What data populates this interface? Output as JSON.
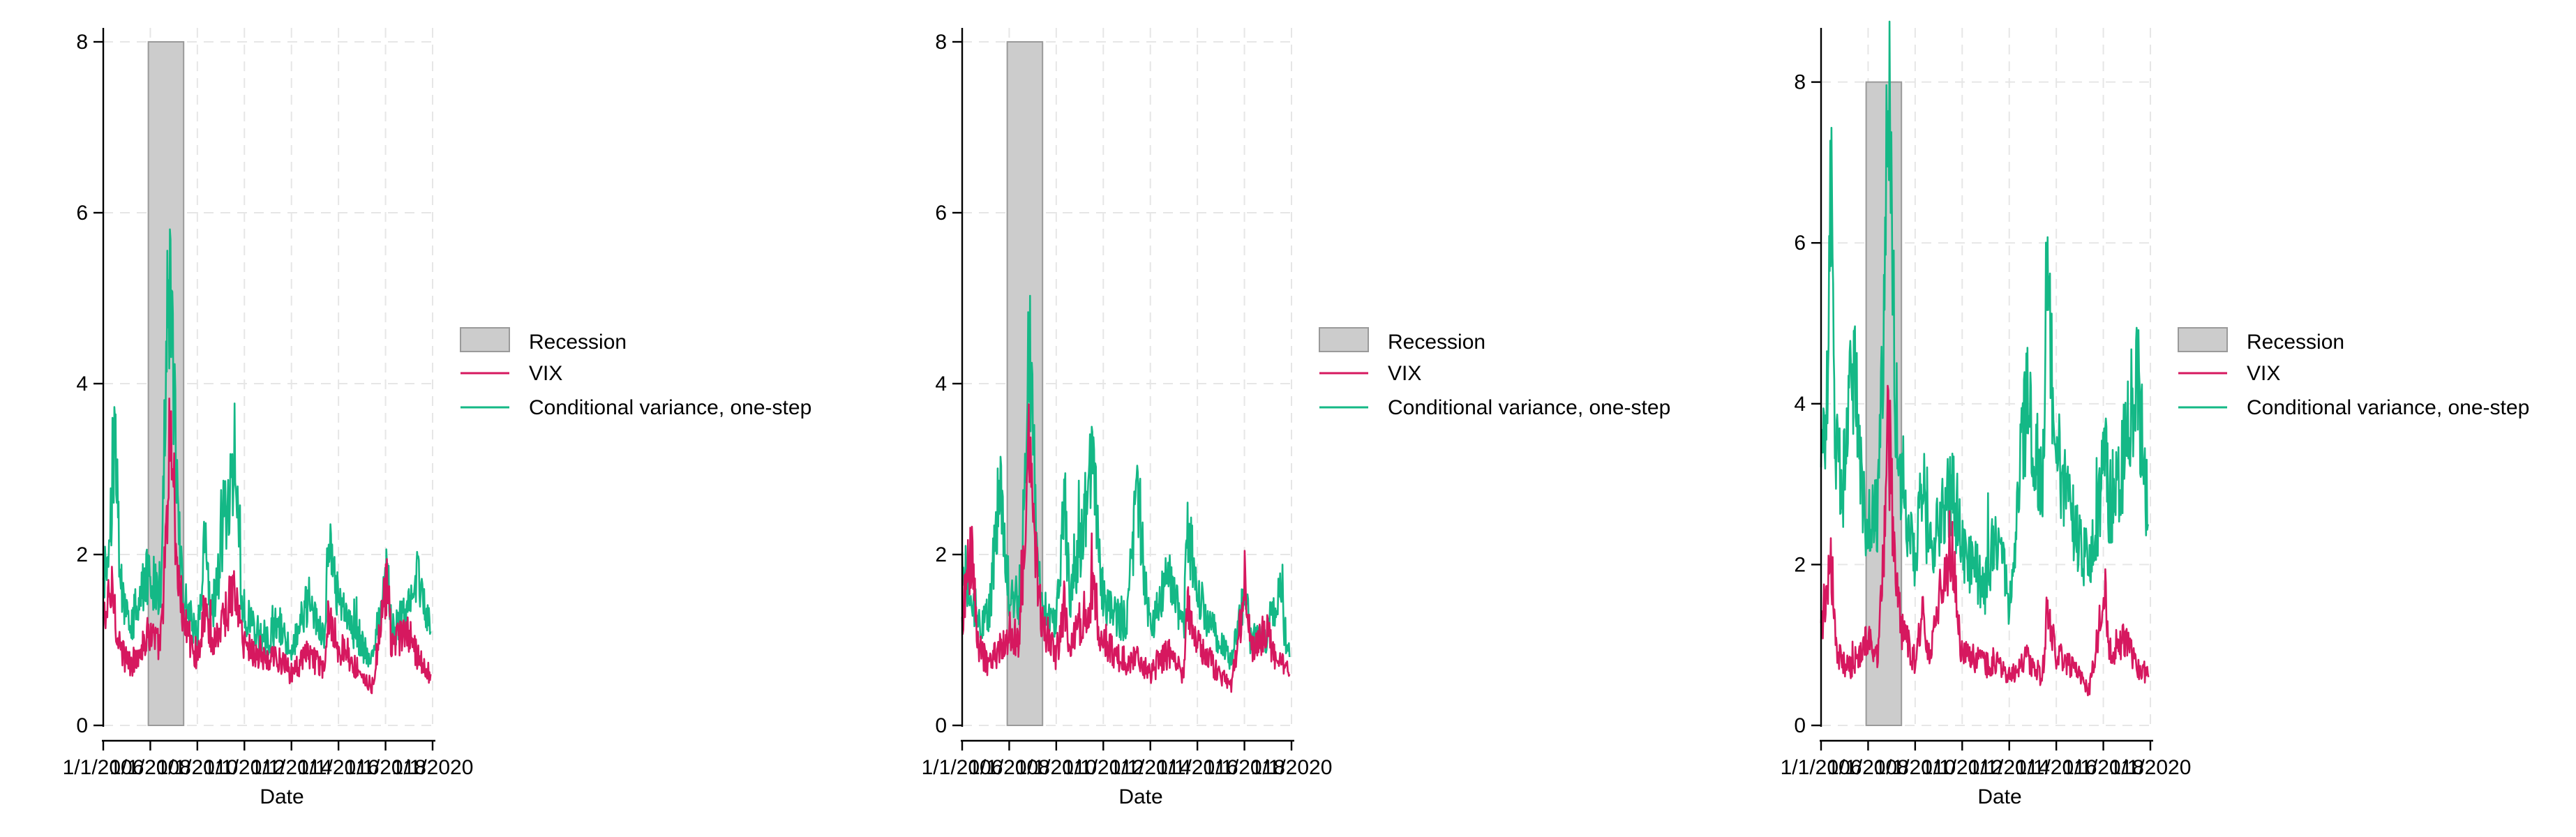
{
  "colors": {
    "recession": "#cccccc",
    "recession_edge": "#9a9a9a",
    "vix": "#d6185f",
    "cv": "#14b886",
    "grid": "#e6e6e6",
    "axis": "#000000"
  },
  "chart_data": [
    {
      "type": "line",
      "xlabel": "Date",
      "ylabel": "",
      "ylim": [
        0,
        8
      ],
      "yticks": [
        0,
        2,
        4,
        6,
        8
      ],
      "xlim": [
        "2006-01-01",
        "2020-01-01"
      ],
      "xtick_labels": [
        "1/1/2006",
        "1/1/2008",
        "1/1/2010",
        "1/1/2012",
        "1/1/2014",
        "1/1/2016",
        "1/1/2018",
        "1/1/2020"
      ],
      "grid": true,
      "legend_position": "right",
      "recession": {
        "start": "2007-12-01",
        "end": "2009-06-01",
        "y_top": 8
      },
      "series": [
        {
          "name": "VIX",
          "x": [
            "2006-01",
            "2006-06",
            "2006-09",
            "2007-03",
            "2007-08",
            "2008-01",
            "2008-06",
            "2008-10",
            "2008-11",
            "2009-03",
            "2009-06",
            "2010-01",
            "2010-05",
            "2010-08",
            "2011-08",
            "2011-12",
            "2012-06",
            "2013-01",
            "2013-06",
            "2014-01",
            "2014-10",
            "2015-06",
            "2015-08",
            "2016-01",
            "2016-06",
            "2017-06",
            "2018-02",
            "2018-04",
            "2018-12",
            "2019-06",
            "2019-12"
          ],
          "y": [
            1.2,
            1.6,
            0.9,
            0.7,
            0.9,
            1.1,
            0.9,
            2.5,
            3.6,
            1.8,
            1.2,
            0.8,
            1.4,
            0.9,
            1.6,
            1.0,
            0.85,
            0.75,
            0.8,
            0.6,
            0.85,
            0.6,
            1.4,
            0.9,
            0.8,
            0.45,
            1.7,
            0.9,
            1.1,
            0.75,
            0.6
          ]
        },
        {
          "name": "Conditional variance, one-step",
          "x": [
            "2006-01",
            "2006-06",
            "2006-07",
            "2006-10",
            "2007-03",
            "2007-08",
            "2008-01",
            "2008-06",
            "2008-10",
            "2008-11",
            "2009-03",
            "2009-06",
            "2010-01",
            "2010-05",
            "2010-08",
            "2011-08",
            "2011-12",
            "2012-06",
            "2013-01",
            "2013-06",
            "2014-01",
            "2014-10",
            "2015-06",
            "2015-08",
            "2016-01",
            "2016-06",
            "2017-06",
            "2018-02",
            "2018-04",
            "2018-12",
            "2019-06",
            "2019-12"
          ],
          "y": [
            1.6,
            2.7,
            3.5,
            1.5,
            1.1,
            1.6,
            1.8,
            1.4,
            4.9,
            5.2,
            2.6,
            1.5,
            1.0,
            2.2,
            1.2,
            3.2,
            1.4,
            1.1,
            1.0,
            1.2,
            0.9,
            1.5,
            1.0,
            2.3,
            1.4,
            1.2,
            0.75,
            1.8,
            1.1,
            1.3,
            1.8,
            1.1
          ]
        }
      ]
    },
    {
      "type": "line",
      "xlabel": "Date",
      "ylabel": "",
      "ylim": [
        0,
        8
      ],
      "yticks": [
        0,
        2,
        4,
        6,
        8
      ],
      "xlim": [
        "2006-01-01",
        "2020-01-01"
      ],
      "xtick_labels": [
        "1/1/2006",
        "1/1/2008",
        "1/1/2010",
        "1/1/2012",
        "1/1/2014",
        "1/1/2016",
        "1/1/2018",
        "1/1/2020"
      ],
      "grid": true,
      "legend_position": "right",
      "recession": {
        "start": "2007-12-01",
        "end": "2009-06-01",
        "y_top": 8
      },
      "series": [
        {
          "name": "VIX",
          "x": [
            "2006-01",
            "2006-06",
            "2006-09",
            "2007-03",
            "2007-08",
            "2008-01",
            "2008-06",
            "2008-10",
            "2008-11",
            "2009-03",
            "2009-06",
            "2010-01",
            "2010-05",
            "2010-08",
            "2011-08",
            "2011-12",
            "2012-06",
            "2013-01",
            "2013-06",
            "2014-01",
            "2014-10",
            "2015-06",
            "2015-08",
            "2016-01",
            "2016-06",
            "2017-06",
            "2018-02",
            "2018-04",
            "2018-12",
            "2019-06",
            "2019-12"
          ],
          "y": [
            1.2,
            2.1,
            0.9,
            0.7,
            0.9,
            1.1,
            0.9,
            2.5,
            3.3,
            1.8,
            1.2,
            0.8,
            1.4,
            0.9,
            1.6,
            1.0,
            0.85,
            0.75,
            0.8,
            0.6,
            0.85,
            0.6,
            1.4,
            0.9,
            0.8,
            0.45,
            1.6,
            0.9,
            1.1,
            0.75,
            0.6
          ]
        },
        {
          "name": "Conditional variance, one-step",
          "x": [
            "2006-01",
            "2006-06",
            "2006-10",
            "2007-03",
            "2007-08",
            "2008-01",
            "2008-06",
            "2008-10",
            "2008-11",
            "2009-03",
            "2009-06",
            "2010-01",
            "2010-05",
            "2010-08",
            "2011-08",
            "2011-12",
            "2012-06",
            "2013-01",
            "2013-06",
            "2014-01",
            "2014-10",
            "2015-06",
            "2015-08",
            "2016-01",
            "2016-06",
            "2017-06",
            "2018-02",
            "2018-04",
            "2018-12",
            "2019-06",
            "2019-12"
          ],
          "y": [
            1.9,
            1.5,
            1.2,
            1.3,
            2.8,
            1.6,
            1.4,
            3.6,
            4.6,
            2.3,
            1.4,
            1.1,
            2.8,
            1.4,
            3.1,
            1.6,
            1.3,
            1.2,
            2.7,
            1.1,
            1.8,
            1.1,
            2.3,
            1.6,
            1.2,
            0.8,
            1.6,
            1.0,
            1.0,
            1.6,
            0.8
          ]
        }
      ]
    },
    {
      "type": "line",
      "xlabel": "Date",
      "ylabel": "",
      "ylim": [
        0,
        8.5
      ],
      "yticks": [
        0,
        2,
        4,
        6,
        8
      ],
      "xlim": [
        "2006-01-01",
        "2020-01-01"
      ],
      "xtick_labels": [
        "1/1/2006",
        "1/1/2008",
        "1/1/2010",
        "1/1/2012",
        "1/1/2014",
        "1/1/2016",
        "1/1/2018",
        "1/1/2020"
      ],
      "grid": true,
      "legend_position": "right",
      "recession": {
        "start": "2007-12-01",
        "end": "2009-06-01",
        "y_top": 8
      },
      "series": [
        {
          "name": "VIX",
          "x": [
            "2006-01",
            "2006-06",
            "2006-09",
            "2007-03",
            "2007-08",
            "2008-01",
            "2008-06",
            "2008-10",
            "2008-11",
            "2009-03",
            "2009-06",
            "2010-01",
            "2010-05",
            "2010-08",
            "2011-08",
            "2011-12",
            "2012-06",
            "2013-01",
            "2013-06",
            "2014-01",
            "2014-10",
            "2015-06",
            "2015-08",
            "2016-01",
            "2016-06",
            "2017-06",
            "2018-02",
            "2018-04",
            "2018-12",
            "2019-06",
            "2019-12"
          ],
          "y": [
            1.2,
            2.1,
            0.9,
            0.7,
            0.9,
            1.1,
            0.9,
            2.5,
            3.8,
            1.8,
            1.2,
            0.8,
            1.4,
            0.9,
            2.2,
            1.0,
            0.85,
            0.75,
            0.8,
            0.6,
            0.85,
            0.6,
            1.4,
            0.9,
            0.8,
            0.45,
            1.7,
            0.9,
            1.1,
            0.75,
            0.6
          ]
        },
        {
          "name": "Conditional variance, one-step",
          "x": [
            "2006-01",
            "2006-04",
            "2006-06",
            "2006-08",
            "2006-12",
            "2007-06",
            "2007-10",
            "2008-01",
            "2008-06",
            "2008-10",
            "2008-11",
            "2009-03",
            "2009-06",
            "2010-01",
            "2010-05",
            "2010-08",
            "2011-08",
            "2011-12",
            "2012-06",
            "2013-01",
            "2013-06",
            "2014-01",
            "2014-10",
            "2015-06",
            "2015-08",
            "2016-01",
            "2016-06",
            "2017-06",
            "2018-02",
            "2018-04",
            "2018-12",
            "2019-06",
            "2019-12"
          ],
          "y": [
            3.0,
            4.0,
            7.1,
            3.5,
            3.0,
            4.6,
            2.8,
            2.5,
            2.6,
            6.0,
            8.3,
            4.0,
            2.9,
            2.0,
            3.0,
            2.2,
            2.9,
            2.3,
            2.0,
            1.7,
            2.5,
            1.5,
            4.1,
            2.8,
            5.4,
            3.5,
            2.8,
            1.9,
            3.3,
            2.7,
            3.4,
            4.5,
            2.5
          ]
        }
      ]
    }
  ]
}
